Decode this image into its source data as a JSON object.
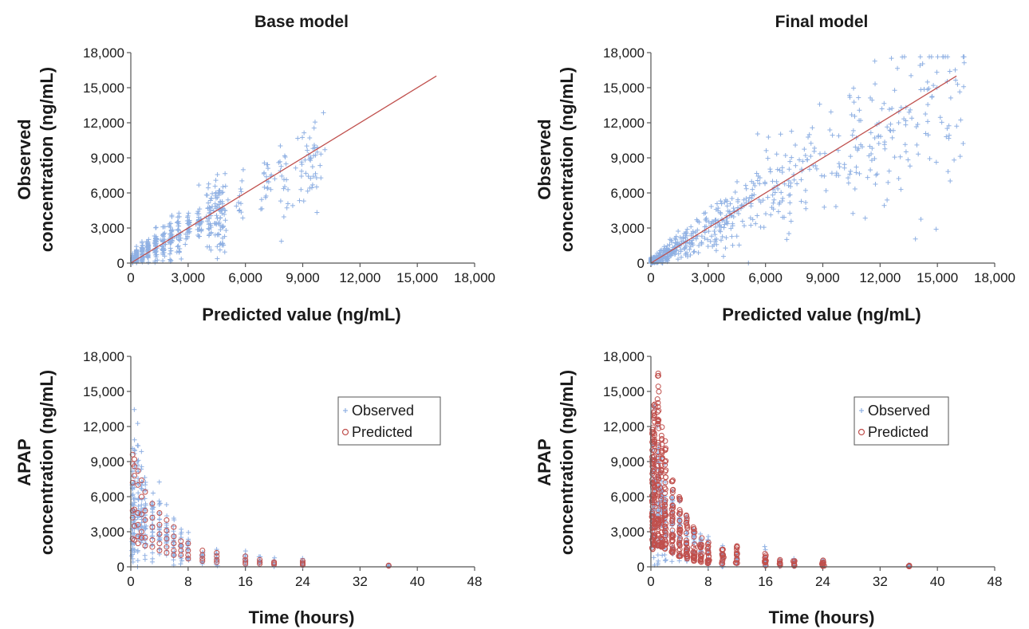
{
  "chart_data": [
    {
      "id": "base-gof",
      "type": "scatter",
      "title": "Base model",
      "xlabel": "Predicted value (ng/mL)",
      "ylabel_lines": [
        "Observed",
        "concentration (ng/mL)"
      ],
      "xlim": [
        0,
        18000
      ],
      "ylim": [
        0,
        18000
      ],
      "xticks": [
        "0",
        "3,000",
        "6,000",
        "9,000",
        "12,000",
        "15,000",
        "18,000"
      ],
      "yticks": [
        "0",
        "3,000",
        "6,000",
        "9,000",
        "12,000",
        "15,000",
        "18,000"
      ],
      "xtick_values": [
        0,
        3000,
        6000,
        9000,
        12000,
        15000,
        18000
      ],
      "ytick_values": [
        0,
        3000,
        6000,
        9000,
        12000,
        15000,
        18000
      ],
      "grid": false,
      "identity_line": {
        "from": [
          0,
          0
        ],
        "to": [
          16000,
          16000
        ],
        "color": "#c0504d"
      },
      "series": [
        {
          "marker": "plus",
          "color": "#8fb0e3",
          "clusters": [
            {
              "x": 100,
              "y_mean": 300,
              "y_sd": 250,
              "n": 45
            },
            {
              "x": 300,
              "y_mean": 550,
              "y_sd": 350,
              "n": 45
            },
            {
              "x": 600,
              "y_mean": 850,
              "y_sd": 450,
              "n": 45
            },
            {
              "x": 900,
              "y_mean": 1200,
              "y_sd": 550,
              "n": 45
            },
            {
              "x": 1300,
              "y_mean": 1550,
              "y_sd": 650,
              "n": 40
            },
            {
              "x": 1700,
              "y_mean": 1800,
              "y_sd": 750,
              "n": 35
            },
            {
              "x": 2100,
              "y_mean": 2100,
              "y_sd": 850,
              "n": 35
            },
            {
              "x": 2500,
              "y_mean": 2400,
              "y_sd": 800,
              "n": 30
            },
            {
              "x": 3000,
              "y_mean": 2900,
              "y_sd": 700,
              "n": 25
            },
            {
              "x": 3600,
              "y_mean": 3400,
              "y_sd": 1000,
              "n": 30
            },
            {
              "x": 4100,
              "y_mean": 3600,
              "y_sd": 1500,
              "n": 35
            },
            {
              "x": 4500,
              "y_mean": 3900,
              "y_sd": 1500,
              "n": 30
            },
            {
              "x": 4800,
              "y_mean": 4200,
              "y_sd": 1800,
              "n": 45
            },
            {
              "x": 5800,
              "y_mean": 5600,
              "y_sd": 1000,
              "n": 12
            },
            {
              "x": 7100,
              "y_mean": 6900,
              "y_sd": 1100,
              "n": 20
            },
            {
              "x": 8000,
              "y_mean": 7100,
              "y_sd": 1300,
              "n": 22
            },
            {
              "x": 9100,
              "y_mean": 8200,
              "y_sd": 1700,
              "n": 22
            },
            {
              "x": 9600,
              "y_mean": 8800,
              "y_sd": 2000,
              "n": 25
            }
          ]
        }
      ]
    },
    {
      "id": "final-gof",
      "type": "scatter",
      "title": "Final model",
      "xlabel": "Predicted value (ng/mL)",
      "ylabel_lines": [
        "Observed",
        "concentration (ng/mL)"
      ],
      "xlim": [
        0,
        18000
      ],
      "ylim": [
        0,
        18000
      ],
      "xticks": [
        "0",
        "3,000",
        "6,000",
        "9,000",
        "12,000",
        "15,000",
        "18,000"
      ],
      "yticks": [
        "0",
        "3,000",
        "6,000",
        "9,000",
        "12,000",
        "15,000",
        "18,000"
      ],
      "xtick_values": [
        0,
        3000,
        6000,
        9000,
        12000,
        15000,
        18000
      ],
      "ytick_values": [
        0,
        3000,
        6000,
        9000,
        12000,
        15000,
        18000
      ],
      "grid": false,
      "identity_line": {
        "from": [
          0,
          0
        ],
        "to": [
          16000,
          16000
        ],
        "color": "#c0504d"
      },
      "series": [
        {
          "marker": "plus",
          "color": "#8fb0e3",
          "scatter_band": {
            "x_max": 16500,
            "n": 700,
            "spread_frac": 0.25
          }
        }
      ]
    },
    {
      "id": "base-time",
      "type": "scatter",
      "title": "",
      "xlabel": "Time (hours)",
      "ylabel_lines": [
        "APAP",
        "concentration (ng/mL)"
      ],
      "xlim": [
        0,
        48
      ],
      "ylim": [
        0,
        18000
      ],
      "xticks": [
        "0",
        "8",
        "16",
        "24",
        "32",
        "40",
        "48"
      ],
      "yticks": [
        "0",
        "3,000",
        "6,000",
        "9,000",
        "12,000",
        "15,000",
        "18,000"
      ],
      "xtick_values": [
        0,
        8,
        16,
        24,
        32,
        40,
        48
      ],
      "ytick_values": [
        0,
        3000,
        6000,
        9000,
        12000,
        15000,
        18000
      ],
      "grid": false,
      "legend": {
        "position": "top-right",
        "entries": [
          "Observed",
          "Predicted"
        ]
      },
      "times": [
        0.25,
        0.5,
        1,
        1.5,
        2,
        3,
        4,
        5,
        6,
        7,
        8,
        10,
        12,
        16,
        18,
        20,
        24,
        36
      ],
      "series": [
        {
          "name": "Observed",
          "marker": "plus",
          "color": "#8fb0e3",
          "profile": [
            {
              "t": 0.25,
              "y_mean": 4500,
              "y_sd": 2800,
              "n": 35
            },
            {
              "t": 0.5,
              "y_mean": 5200,
              "y_sd": 3000,
              "n": 35
            },
            {
              "t": 1,
              "y_mean": 5200,
              "y_sd": 2600,
              "n": 35
            },
            {
              "t": 1.5,
              "y_mean": 4700,
              "y_sd": 2200,
              "n": 30
            },
            {
              "t": 2,
              "y_mean": 4300,
              "y_sd": 2000,
              "n": 30
            },
            {
              "t": 3,
              "y_mean": 3700,
              "y_sd": 1600,
              "n": 28
            },
            {
              "t": 4,
              "y_mean": 3100,
              "y_sd": 1400,
              "n": 25
            },
            {
              "t": 5,
              "y_mean": 2600,
              "y_sd": 1200,
              "n": 22
            },
            {
              "t": 6,
              "y_mean": 2100,
              "y_sd": 1000,
              "n": 20
            },
            {
              "t": 7,
              "y_mean": 1700,
              "y_sd": 800,
              "n": 16
            },
            {
              "t": 8,
              "y_mean": 1400,
              "y_sd": 700,
              "n": 15
            },
            {
              "t": 10,
              "y_mean": 1000,
              "y_sd": 550,
              "n": 12
            },
            {
              "t": 12,
              "y_mean": 800,
              "y_sd": 450,
              "n": 12
            },
            {
              "t": 16,
              "y_mean": 600,
              "y_sd": 400,
              "n": 10
            },
            {
              "t": 18,
              "y_mean": 400,
              "y_sd": 250,
              "n": 7
            },
            {
              "t": 20,
              "y_mean": 350,
              "y_sd": 200,
              "n": 7
            },
            {
              "t": 24,
              "y_mean": 350,
              "y_sd": 250,
              "n": 8
            },
            {
              "t": 36,
              "y_mean": 120,
              "y_sd": 60,
              "n": 4
            }
          ]
        },
        {
          "name": "Predicted",
          "marker": "circle",
          "color": "#c0504d",
          "profile": [
            {
              "t": 0.25,
              "values": [
                9600,
                8800,
                7200,
                4800,
                4200,
                2400
              ]
            },
            {
              "t": 0.5,
              "values": [
                9200,
                8600,
                7800,
                4900,
                3500,
                2300
              ]
            },
            {
              "t": 1,
              "values": [
                8200,
                7000,
                4600,
                3600,
                2600,
                2000
              ]
            },
            {
              "t": 1.5,
              "values": [
                7400,
                6000,
                4500,
                3000,
                2500
              ]
            },
            {
              "t": 2,
              "values": [
                6400,
                4800,
                4000,
                2500,
                1800
              ]
            },
            {
              "t": 3,
              "values": [
                5400,
                4200,
                3400,
                2300,
                1700
              ]
            },
            {
              "t": 4,
              "values": [
                4600,
                3600,
                2800,
                2000,
                1400
              ]
            },
            {
              "t": 5,
              "values": [
                4000,
                3100,
                2400,
                1700,
                1200
              ]
            },
            {
              "t": 6,
              "values": [
                3400,
                2600,
                2000,
                1400,
                1000
              ]
            },
            {
              "t": 7,
              "values": [
                2200,
                1800,
                1400,
                1000
              ]
            },
            {
              "t": 8,
              "values": [
                2000,
                1400,
                1000,
                700
              ]
            },
            {
              "t": 10,
              "values": [
                1400,
                1000,
                700,
                500
              ]
            },
            {
              "t": 12,
              "values": [
                1200,
                900,
                600,
                400
              ]
            },
            {
              "t": 16,
              "values": [
                900,
                600,
                400,
                250
              ]
            },
            {
              "t": 18,
              "values": [
                600,
                400,
                250
              ]
            },
            {
              "t": 20,
              "values": [
                400,
                300,
                200
              ]
            },
            {
              "t": 24,
              "values": [
                500,
                350,
                250,
                150
              ]
            },
            {
              "t": 36,
              "values": [
                120,
                80
              ]
            }
          ]
        }
      ]
    },
    {
      "id": "final-time",
      "type": "scatter",
      "title": "",
      "xlabel": "Time (hours)",
      "ylabel_lines": [
        "APAP",
        "concentration (ng/mL)"
      ],
      "xlim": [
        0,
        48
      ],
      "ylim": [
        0,
        18000
      ],
      "xticks": [
        "0",
        "8",
        "16",
        "24",
        "32",
        "40",
        "48"
      ],
      "yticks": [
        "0",
        "3,000",
        "6,000",
        "9,000",
        "12,000",
        "15,000",
        "18,000"
      ],
      "xtick_values": [
        0,
        8,
        16,
        24,
        32,
        40,
        48
      ],
      "ytick_values": [
        0,
        3000,
        6000,
        9000,
        12000,
        15000,
        18000
      ],
      "grid": false,
      "legend": {
        "position": "top-right",
        "entries": [
          "Observed",
          "Predicted"
        ]
      },
      "series": [
        {
          "name": "Observed",
          "marker": "plus",
          "color": "#8fb0e3",
          "profile": [
            {
              "t": 0.25,
              "y_mean": 4500,
              "y_sd": 2800,
              "n": 35
            },
            {
              "t": 0.5,
              "y_mean": 5200,
              "y_sd": 3000,
              "n": 35
            },
            {
              "t": 1,
              "y_mean": 5200,
              "y_sd": 2600,
              "n": 35
            },
            {
              "t": 1.5,
              "y_mean": 4700,
              "y_sd": 2200,
              "n": 30
            },
            {
              "t": 2,
              "y_mean": 4300,
              "y_sd": 2000,
              "n": 30
            },
            {
              "t": 3,
              "y_mean": 3700,
              "y_sd": 1600,
              "n": 28
            },
            {
              "t": 4,
              "y_mean": 3100,
              "y_sd": 1400,
              "n": 25
            },
            {
              "t": 5,
              "y_mean": 2600,
              "y_sd": 1200,
              "n": 22
            },
            {
              "t": 6,
              "y_mean": 2100,
              "y_sd": 1000,
              "n": 20
            },
            {
              "t": 7,
              "y_mean": 1700,
              "y_sd": 800,
              "n": 16
            },
            {
              "t": 8,
              "y_mean": 1400,
              "y_sd": 700,
              "n": 15
            },
            {
              "t": 10,
              "y_mean": 1000,
              "y_sd": 550,
              "n": 12
            },
            {
              "t": 12,
              "y_mean": 800,
              "y_sd": 450,
              "n": 12
            },
            {
              "t": 16,
              "y_mean": 600,
              "y_sd": 400,
              "n": 10
            },
            {
              "t": 18,
              "y_mean": 400,
              "y_sd": 250,
              "n": 7
            },
            {
              "t": 20,
              "y_mean": 350,
              "y_sd": 200,
              "n": 7
            },
            {
              "t": 24,
              "y_mean": 350,
              "y_sd": 250,
              "n": 8
            },
            {
              "t": 36,
              "y_mean": 120,
              "y_sd": 60,
              "n": 4
            }
          ]
        },
        {
          "name": "Predicted",
          "marker": "circle",
          "color": "#c0504d",
          "profile": [
            {
              "t": 0.25,
              "y_min": 1500,
              "y_max": 12500,
              "n": 60
            },
            {
              "t": 0.5,
              "y_min": 1800,
              "y_max": 14000,
              "n": 60
            },
            {
              "t": 1,
              "y_min": 1800,
              "y_max": 16700,
              "n": 60
            },
            {
              "t": 1.5,
              "y_min": 1700,
              "y_max": 12000,
              "n": 50
            },
            {
              "t": 2,
              "y_min": 1500,
              "y_max": 11000,
              "n": 45
            },
            {
              "t": 3,
              "y_min": 1200,
              "y_max": 7500,
              "n": 40
            },
            {
              "t": 4,
              "y_min": 900,
              "y_max": 6000,
              "n": 35
            },
            {
              "t": 5,
              "y_min": 700,
              "y_max": 4600,
              "n": 30
            },
            {
              "t": 6,
              "y_min": 500,
              "y_max": 3500,
              "n": 25
            },
            {
              "t": 7,
              "y_min": 400,
              "y_max": 2500,
              "n": 20
            },
            {
              "t": 8,
              "y_min": 300,
              "y_max": 2100,
              "n": 20
            },
            {
              "t": 10,
              "y_min": 250,
              "y_max": 1500,
              "n": 15
            },
            {
              "t": 12,
              "y_min": 200,
              "y_max": 2000,
              "n": 18
            },
            {
              "t": 16,
              "y_min": 120,
              "y_max": 1400,
              "n": 15
            },
            {
              "t": 18,
              "y_min": 100,
              "y_max": 700,
              "n": 10
            },
            {
              "t": 20,
              "y_min": 80,
              "y_max": 550,
              "n": 10
            },
            {
              "t": 24,
              "y_min": 60,
              "y_max": 800,
              "n": 12
            },
            {
              "t": 36,
              "y_min": 20,
              "y_max": 120,
              "n": 4
            }
          ]
        }
      ]
    }
  ]
}
